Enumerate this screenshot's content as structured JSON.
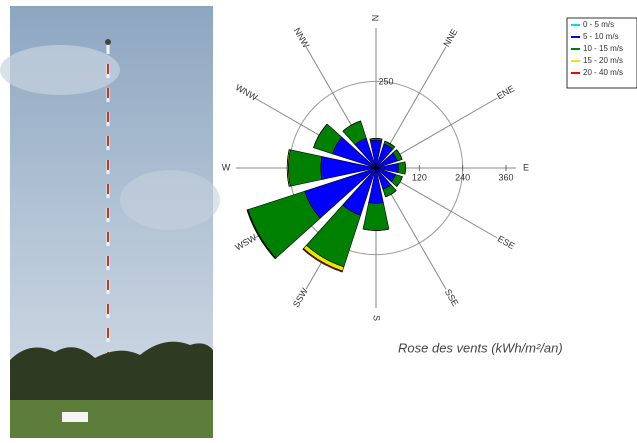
{
  "chart_data": {
    "type": "windrose",
    "caption": "Rose des vents (kWh/m²/an)",
    "categories": [
      "N",
      "NNE",
      "ENE",
      "E",
      "ESE",
      "SSE",
      "S",
      "SSW",
      "WSW",
      "W",
      "WNW",
      "NNW"
    ],
    "series": [
      {
        "name": "0 - 5 m/s",
        "color": "#00d8ff",
        "values": [
          2,
          2,
          2,
          2,
          2,
          2,
          3,
          3,
          3,
          3,
          2,
          2
        ]
      },
      {
        "name": "5 - 10 m/s",
        "color": "#0000ff",
        "values": [
          75,
          68,
          60,
          60,
          55,
          60,
          95,
          135,
          205,
          150,
          125,
          85
        ]
      },
      {
        "name": "10 - 15 m/s",
        "color": "#008000",
        "values": [
          5,
          8,
          14,
          20,
          20,
          22,
          75,
          150,
          165,
          90,
          55,
          50
        ]
      },
      {
        "name": "15 - 20 m/s",
        "color": "#e8e800",
        "values": [
          0,
          0,
          0,
          0,
          0,
          0,
          0,
          12,
          2,
          3,
          0,
          0
        ]
      },
      {
        "name": "20 - 40 m/s",
        "color": "#ff0000",
        "values": [
          0,
          0,
          0,
          0,
          0,
          0,
          0,
          3,
          1,
          0,
          0,
          0
        ]
      }
    ],
    "rlim": [
      0,
      360
    ],
    "rticks": [
      120,
      240,
      360
    ],
    "grid_rings": [
      240
    ],
    "annotations": [
      "250"
    ],
    "legend": "top-right"
  }
}
